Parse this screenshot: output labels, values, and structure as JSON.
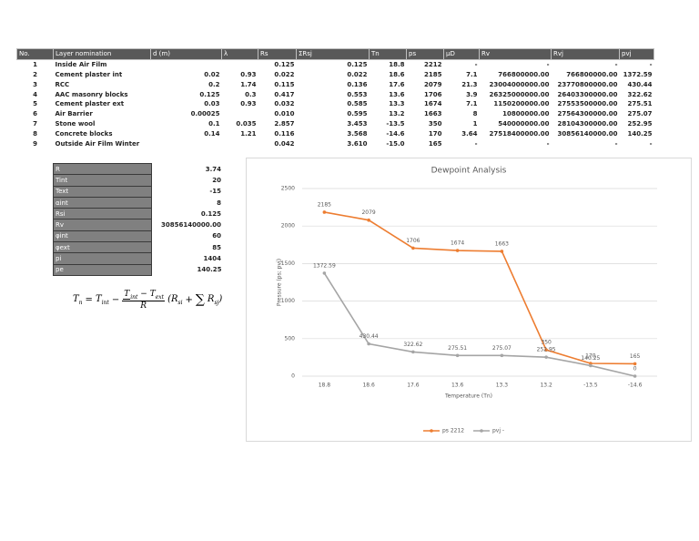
{
  "table": {
    "header": [
      "No.",
      "Layer nomination",
      "d (m)",
      "λ",
      "Rs",
      "ΣRsj",
      "Tn",
      "ps",
      "μD",
      "Rv",
      "Rvj",
      "pvj"
    ],
    "rows": [
      [
        "1",
        "Inside Air Film",
        null,
        null,
        "0.125",
        "0.125",
        "18.8",
        "2212",
        "-",
        "-",
        "-",
        "-"
      ],
      [
        "2",
        "Cement plaster int",
        "0.02",
        "0.93",
        "0.022",
        "0.022",
        "18.6",
        "2185",
        "7.1",
        "766800000.00",
        "766800000.00",
        "1372.59"
      ],
      [
        "3",
        "RCC",
        "0.2",
        "1.74",
        "0.115",
        "0.136",
        "17.6",
        "2079",
        "21.3",
        "23004000000.00",
        "23770800000.00",
        "430.44"
      ],
      [
        "4",
        "AAC masonry blocks",
        "0.125",
        "0.3",
        "0.417",
        "0.553",
        "13.6",
        "1706",
        "3.9",
        "26325000000.00",
        "26403300000.00",
        "322.62"
      ],
      [
        "5",
        "Cement plaster ext",
        "0.03",
        "0.93",
        "0.032",
        "0.585",
        "13.3",
        "1674",
        "7.1",
        "1150200000.00",
        "27553500000.00",
        "275.51"
      ],
      [
        "6",
        "Air Barrier",
        "0.00025",
        null,
        "0.010",
        "0.595",
        "13.2",
        "1663",
        "8",
        "10800000.00",
        "27564300000.00",
        "275.07"
      ],
      [
        "7",
        "Stone wool",
        "0.1",
        "0.035",
        "2.857",
        "3.453",
        "-13.5",
        "350",
        "1",
        "540000000.00",
        "28104300000.00",
        "252.95"
      ],
      [
        "8",
        "Concrete blocks",
        "0.14",
        "1.21",
        "0.116",
        "3.568",
        "-14.6",
        "170",
        "3.64",
        "27518400000.00",
        "30856140000.00",
        "140.25"
      ],
      [
        "9",
        "Outside Air Film Winter",
        null,
        null,
        "0.042",
        "3.610",
        "-15.0",
        "165",
        "-",
        "-",
        "-",
        "-"
      ]
    ]
  },
  "params": {
    "rows": [
      [
        "R",
        "3.74"
      ],
      [
        "Tint",
        "20"
      ],
      [
        "Text",
        "-15"
      ],
      [
        "αint",
        "8"
      ],
      [
        "Rsi",
        "0.125"
      ],
      [
        "Rv",
        "30856140000.00"
      ],
      [
        "φint",
        "60"
      ],
      [
        "φext",
        "85"
      ],
      [
        "pi",
        "1404"
      ],
      [
        "pe",
        "140.25"
      ]
    ]
  },
  "formula": [
    "T",
    "n",
    "=",
    "T",
    "int",
    "−",
    "T",
    "int",
    "−",
    "T",
    "ext",
    "R",
    "(R",
    "si",
    "+",
    "∑",
    "R",
    "sj",
    ")"
  ],
  "chart_data": {
    "type": "line",
    "title": "Dewpoint Analysis",
    "x_label": "Temperature (Tn)",
    "y_label": "Pressure (ps; pvj)",
    "categories": [
      "18.8",
      "18.6",
      "17.6",
      "13.6",
      "13.3",
      "13.2",
      "-13.5",
      "-14.6"
    ],
    "series": [
      {
        "name": "ps 2212",
        "color": "#ed7d31",
        "values": [
          2185,
          2079,
          1706,
          1674,
          1663,
          350,
          170,
          165
        ]
      },
      {
        "name": "pvj -",
        "color": "#a5a5a5",
        "values": [
          1372.59,
          430.44,
          322.62,
          275.51,
          275.07,
          252.95,
          140.25,
          0
        ]
      }
    ],
    "ylim": [
      0,
      2500
    ],
    "yticks": [
      0,
      500,
      1000,
      1500,
      2000,
      2500
    ],
    "grid": true,
    "legend": "bottom"
  }
}
